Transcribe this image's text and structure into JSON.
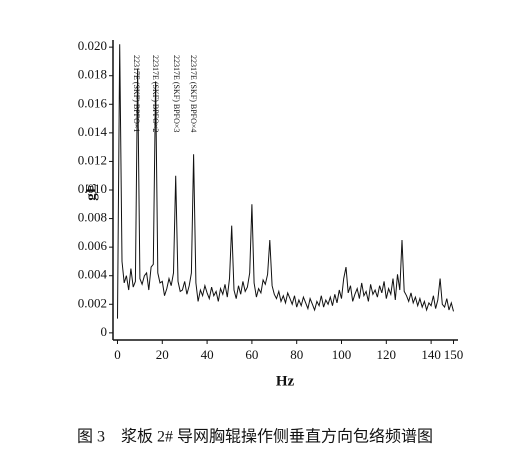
{
  "chart_data": {
    "type": "line",
    "caption": "图 3　浆板 2# 导网胸辊操作侧垂直方向包络频谱图",
    "xlabel": "Hz",
    "ylabel": "gE",
    "xlim": [
      -2,
      152
    ],
    "ylim": [
      -0.0005,
      0.0205
    ],
    "xticks": [
      0,
      20,
      40,
      60,
      80,
      100,
      120,
      140,
      150
    ],
    "yticks": [
      0,
      0.002,
      0.004,
      0.006,
      0.008,
      {
        "value": 0.01,
        "label": "0.010"
      },
      0.012,
      0.014,
      0.016,
      0.018,
      {
        "value": 0.02,
        "label": "0.020"
      }
    ],
    "annotations": [
      "22317E (SKF) BPFO×1",
      "22317E (SKF) BPFO×2",
      "22317E (SKF) BPFO×3",
      "22317E (SKF) BPFO×4"
    ],
    "x": [
      0,
      1,
      2,
      3,
      4,
      5,
      6,
      7,
      8,
      9,
      10,
      11,
      12,
      13,
      14,
      15,
      16,
      17,
      18,
      19,
      20,
      21,
      22,
      23,
      24,
      25,
      26,
      27,
      28,
      29,
      30,
      31,
      32,
      33,
      34,
      35,
      36,
      37,
      38,
      39,
      40,
      41,
      42,
      43,
      44,
      45,
      46,
      47,
      48,
      49,
      50,
      51,
      52,
      53,
      54,
      55,
      56,
      57,
      58,
      59,
      60,
      61,
      62,
      63,
      64,
      65,
      66,
      67,
      68,
      69,
      70,
      71,
      72,
      73,
      74,
      75,
      76,
      77,
      78,
      79,
      80,
      81,
      82,
      83,
      84,
      85,
      86,
      87,
      88,
      89,
      90,
      91,
      92,
      93,
      94,
      95,
      96,
      97,
      98,
      99,
      100,
      101,
      102,
      103,
      104,
      105,
      106,
      107,
      108,
      109,
      110,
      111,
      112,
      113,
      114,
      115,
      116,
      117,
      118,
      119,
      120,
      121,
      122,
      123,
      124,
      125,
      126,
      127,
      128,
      129,
      130,
      131,
      132,
      133,
      134,
      135,
      136,
      137,
      138,
      139,
      140,
      141,
      142,
      143,
      144,
      145,
      146,
      147,
      148,
      149,
      150
    ],
    "series": [
      {
        "color": "#111111",
        "values": [
          0.001,
          0.0202,
          0.005,
          0.0035,
          0.004,
          0.003,
          0.0045,
          0.0032,
          0.0036,
          0.0185,
          0.0038,
          0.0034,
          0.004,
          0.0042,
          0.003,
          0.0046,
          0.0048,
          0.0176,
          0.0042,
          0.0035,
          0.0036,
          0.0026,
          0.0031,
          0.0038,
          0.0033,
          0.0042,
          0.011,
          0.0036,
          0.0029,
          0.003,
          0.0036,
          0.0027,
          0.0033,
          0.0042,
          0.0125,
          0.0035,
          0.0022,
          0.003,
          0.0026,
          0.0033,
          0.0028,
          0.0024,
          0.0032,
          0.0026,
          0.0029,
          0.0022,
          0.0031,
          0.0027,
          0.0034,
          0.0025,
          0.0038,
          0.0075,
          0.003,
          0.0024,
          0.0033,
          0.0027,
          0.0036,
          0.0029,
          0.0032,
          0.0042,
          0.009,
          0.0035,
          0.0025,
          0.0031,
          0.0028,
          0.0037,
          0.0034,
          0.0041,
          0.0065,
          0.0033,
          0.0027,
          0.0024,
          0.0029,
          0.0022,
          0.0026,
          0.0021,
          0.0028,
          0.0024,
          0.002,
          0.0026,
          0.0018,
          0.0023,
          0.0019,
          0.0025,
          0.0021,
          0.0017,
          0.0024,
          0.002,
          0.0016,
          0.0022,
          0.0019,
          0.0026,
          0.0018,
          0.0023,
          0.002,
          0.0025,
          0.0019,
          0.0027,
          0.0021,
          0.003,
          0.0024,
          0.0038,
          0.0046,
          0.0028,
          0.0033,
          0.0022,
          0.0027,
          0.0031,
          0.0024,
          0.0035,
          0.0026,
          0.0029,
          0.0022,
          0.0034,
          0.0027,
          0.003,
          0.0025,
          0.0033,
          0.0028,
          0.0036,
          0.0024,
          0.0031,
          0.0027,
          0.0038,
          0.0023,
          0.0041,
          0.003,
          0.0065,
          0.0029,
          0.0026,
          0.0022,
          0.0028,
          0.0021,
          0.0025,
          0.0019,
          0.0024,
          0.0018,
          0.0022,
          0.0016,
          0.0021,
          0.0019,
          0.0026,
          0.0017,
          0.0023,
          0.0038,
          0.002,
          0.0018,
          0.0024,
          0.0016,
          0.0021,
          0.0015
        ]
      }
    ]
  }
}
